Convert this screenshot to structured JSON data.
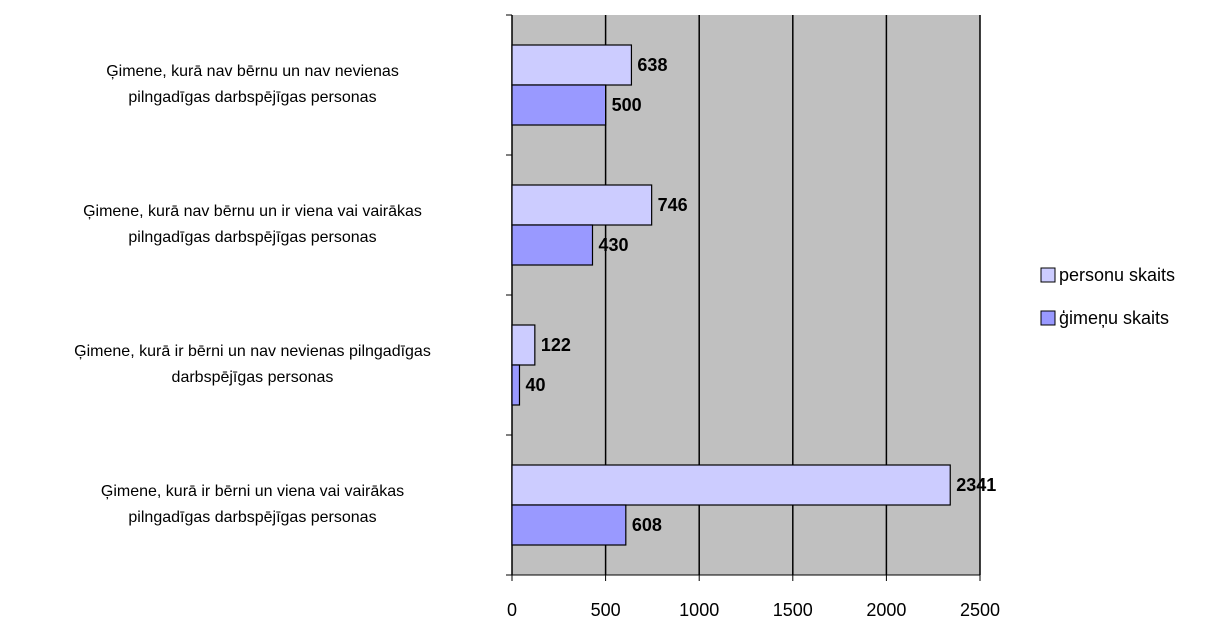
{
  "chart_data": {
    "type": "hbar",
    "categories": [
      "Ģimene, kurā nav bērnu un nav nevienas\npilngadīgas darbspējīgas personas",
      "Ģimene, kurā nav bērnu un ir viena vai vairākas\npilngadīgas darbspējīgas personas",
      "Ģimene, kurā ir bērni un nav nevienas pilngadīgas\ndarbspējīgas personas",
      "Ģimene, kurā ir bērni un viena vai vairākas\npilngadīgas darbspējīgas personas"
    ],
    "series": [
      {
        "name": "personu skaits",
        "color": "#ccccff",
        "values": [
          638,
          746,
          122,
          2341
        ]
      },
      {
        "name": "ģimeņu skaits",
        "color": "#9999ff",
        "values": [
          500,
          430,
          40,
          608
        ]
      }
    ],
    "xlim": [
      0,
      2500
    ],
    "xticks": [
      0,
      500,
      1000,
      1500,
      2000,
      2500
    ],
    "grid": true,
    "legend": "right"
  }
}
